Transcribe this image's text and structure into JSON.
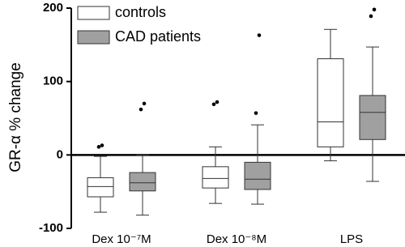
{
  "chart_data": {
    "type": "box",
    "y_label": "GR-α % change",
    "categories": [
      "Dex 10⁻⁷M",
      "Dex 10⁻⁸M",
      "LPS"
    ],
    "ylim": [
      -100,
      200
    ],
    "yticks": [
      -100,
      0,
      100,
      200
    ],
    "legend": "top-left",
    "series": [
      {
        "name": "controls",
        "color": "#ffffff",
        "whisker_low": [
          -78,
          -66,
          -8
        ],
        "q1": [
          -57,
          -45,
          11
        ],
        "median": [
          -43,
          -32,
          45
        ],
        "q3": [
          -31,
          -16,
          131
        ],
        "whisker_high": [
          -2,
          11,
          171
        ],
        "outliers": [
          [
            11,
            13
          ],
          [
            69,
            72
          ],
          []
        ]
      },
      {
        "name": "CAD patients",
        "color": "#a0a0a0",
        "whisker_low": [
          -82,
          -67,
          -36
        ],
        "q1": [
          -49,
          -47,
          21
        ],
        "median": [
          -38,
          -33,
          58
        ],
        "q3": [
          -24,
          -10,
          81
        ],
        "whisker_high": [
          0,
          41,
          147
        ],
        "outliers": [
          [
            62,
            70
          ],
          [
            57,
            163
          ],
          [
            189,
            198
          ]
        ]
      }
    ]
  }
}
